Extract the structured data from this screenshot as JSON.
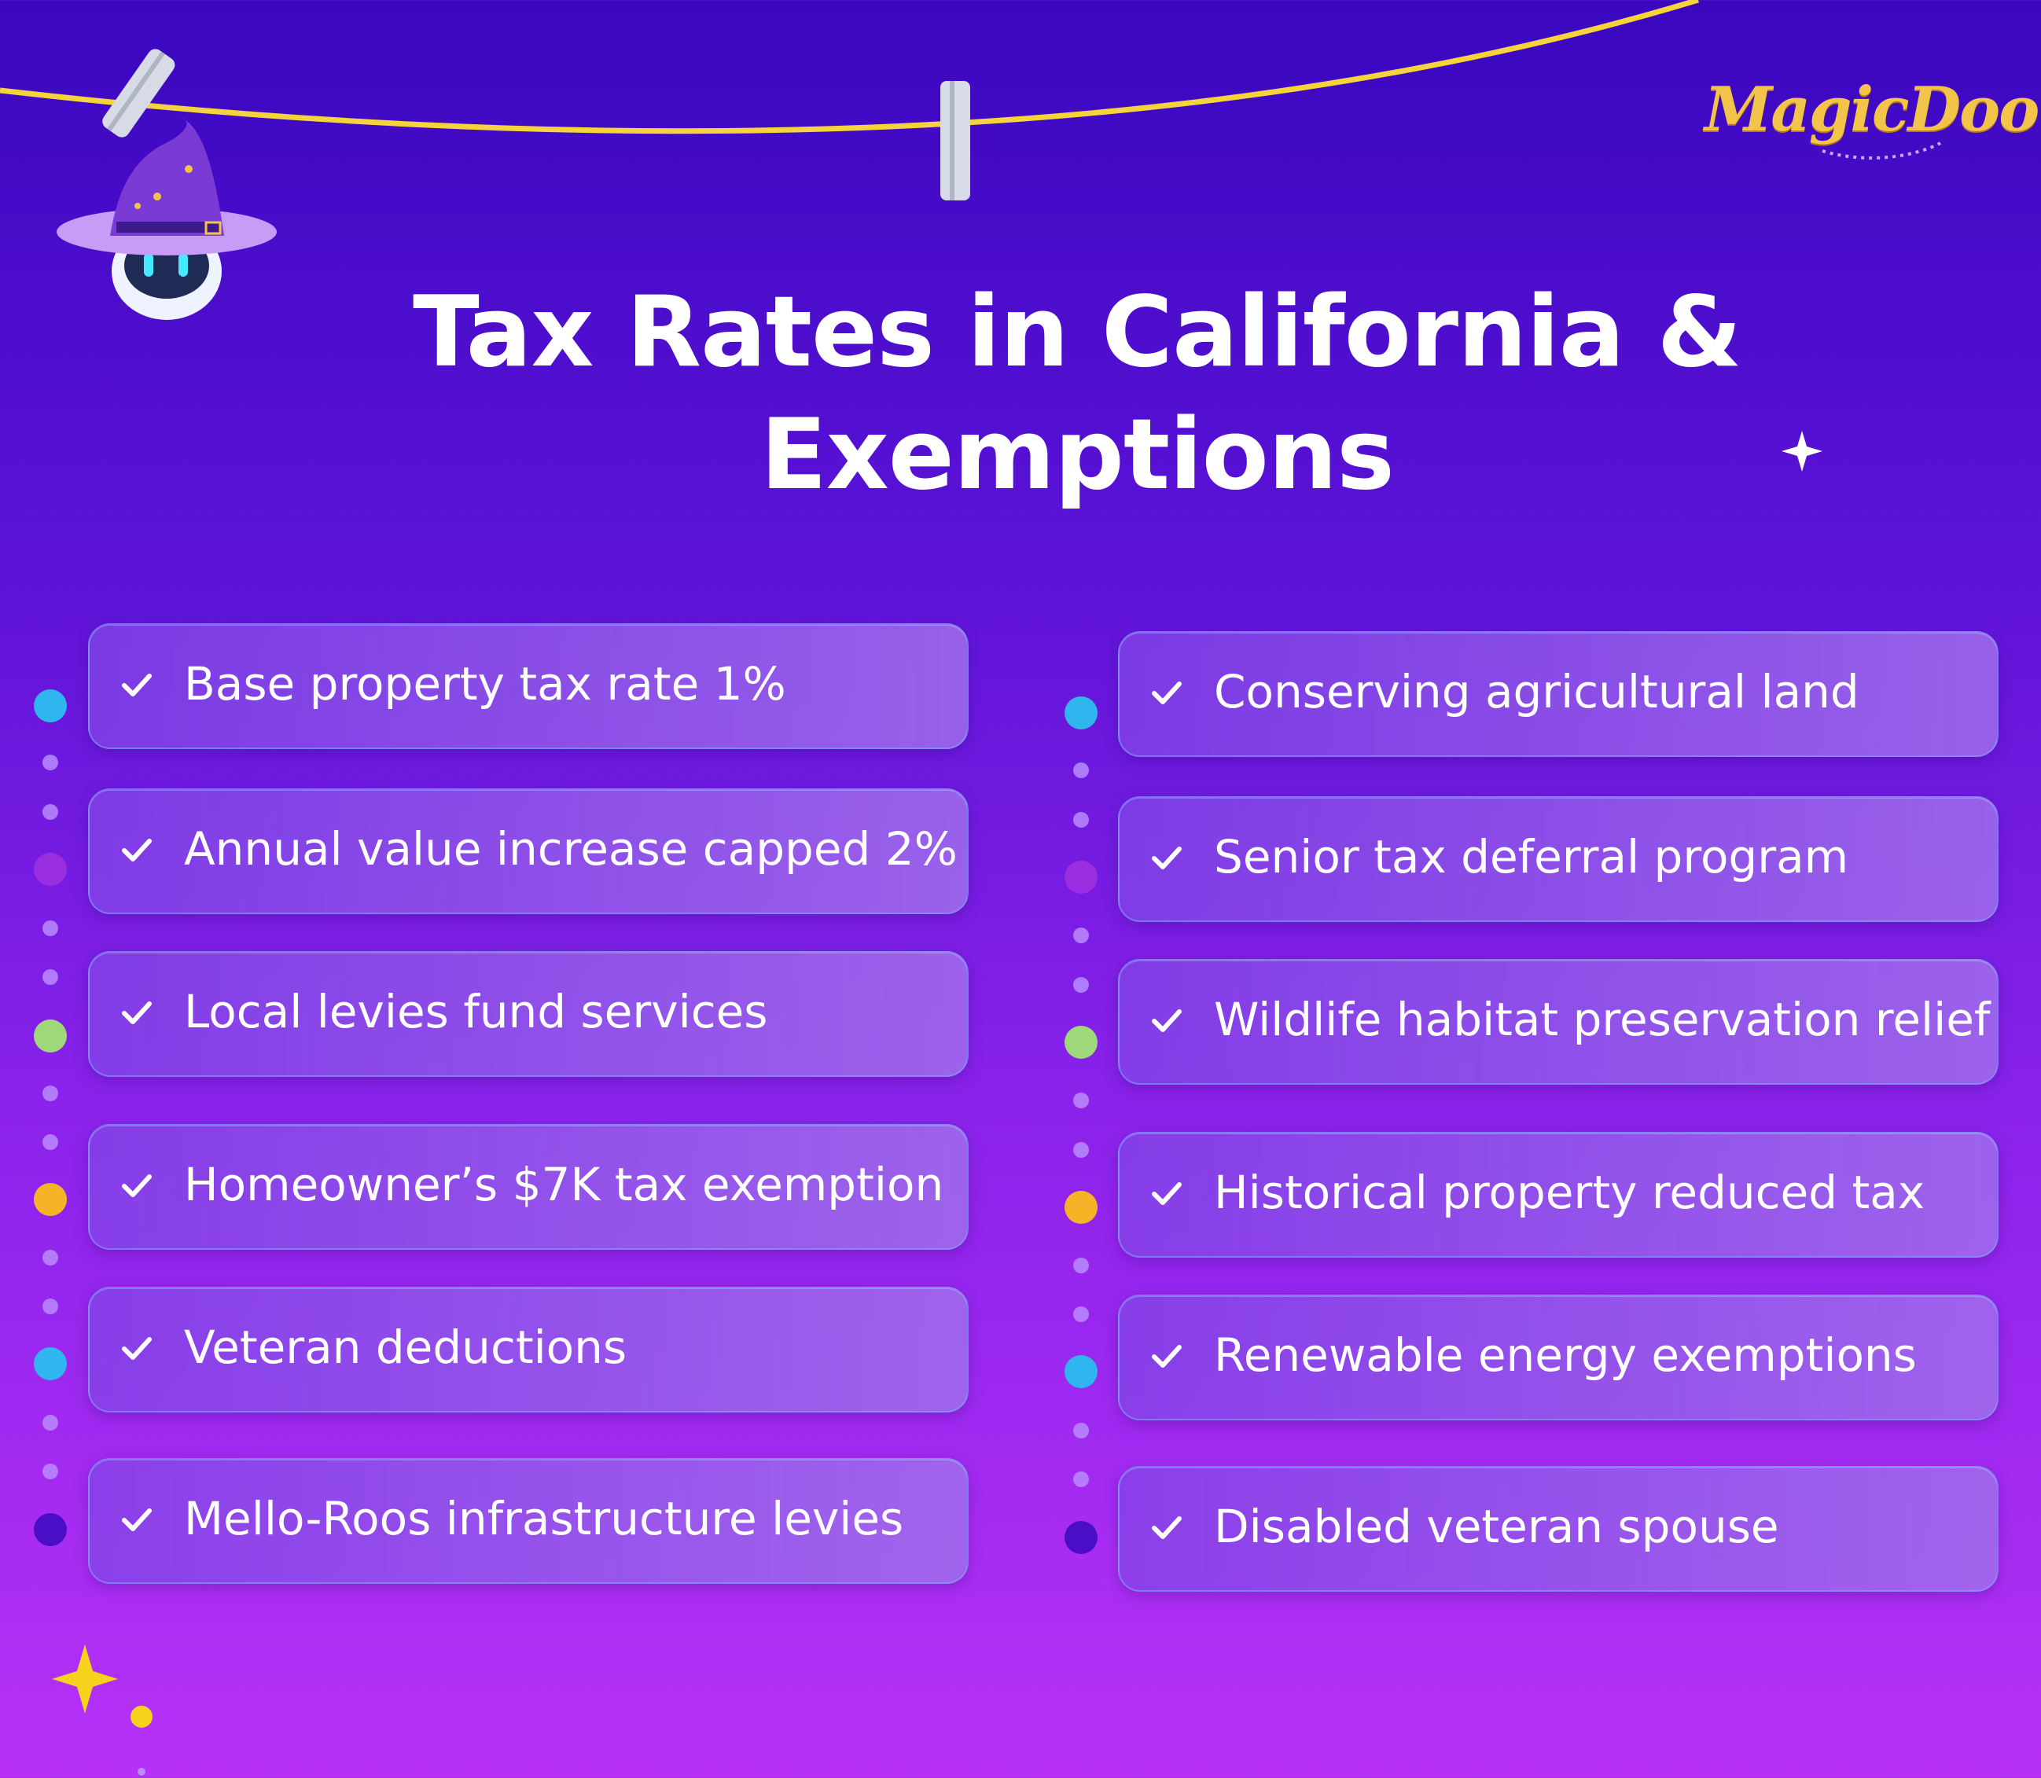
{
  "title": {
    "line1": "Tax Rates in California &",
    "line2": "Exemptions"
  },
  "brand": {
    "logo_text": "MagicDoor",
    "accent_color": "#f3c44a"
  },
  "colors": {
    "background_top": "#3a07bf",
    "background_bottom": "#b731f7",
    "clothesline": "#f5d33a",
    "dot_cyan": "#2fb6ee",
    "dot_purple": "#9a2ee0",
    "dot_green": "#9fd87a",
    "dot_orange": "#f5b327",
    "dot_indigo": "#4a0ec7"
  },
  "left_items": [
    {
      "label": "Base property tax rate 1%",
      "icon": "check-icon"
    },
    {
      "label": "Annual value increase capped 2%",
      "icon": "check-icon"
    },
    {
      "label": "Local levies fund services",
      "icon": "check-icon"
    },
    {
      "label": "Homeowner’s $7K tax exemption",
      "icon": "check-icon"
    },
    {
      "label": "Veteran deductions",
      "icon": "check-icon"
    },
    {
      "label": "Mello-Roos infrastructure levies",
      "icon": "check-icon"
    }
  ],
  "right_items": [
    {
      "label": "Conserving agricultural land",
      "icon": "check-icon"
    },
    {
      "label": "Senior tax deferral program",
      "icon": "check-icon"
    },
    {
      "label": "Wildlife habitat preservation relief",
      "icon": "check-icon"
    },
    {
      "label": "Historical property reduced tax",
      "icon": "check-icon"
    },
    {
      "label": "Renewable energy exemptions",
      "icon": "check-icon"
    },
    {
      "label": "Disabled veteran spouse",
      "icon": "check-icon"
    }
  ]
}
